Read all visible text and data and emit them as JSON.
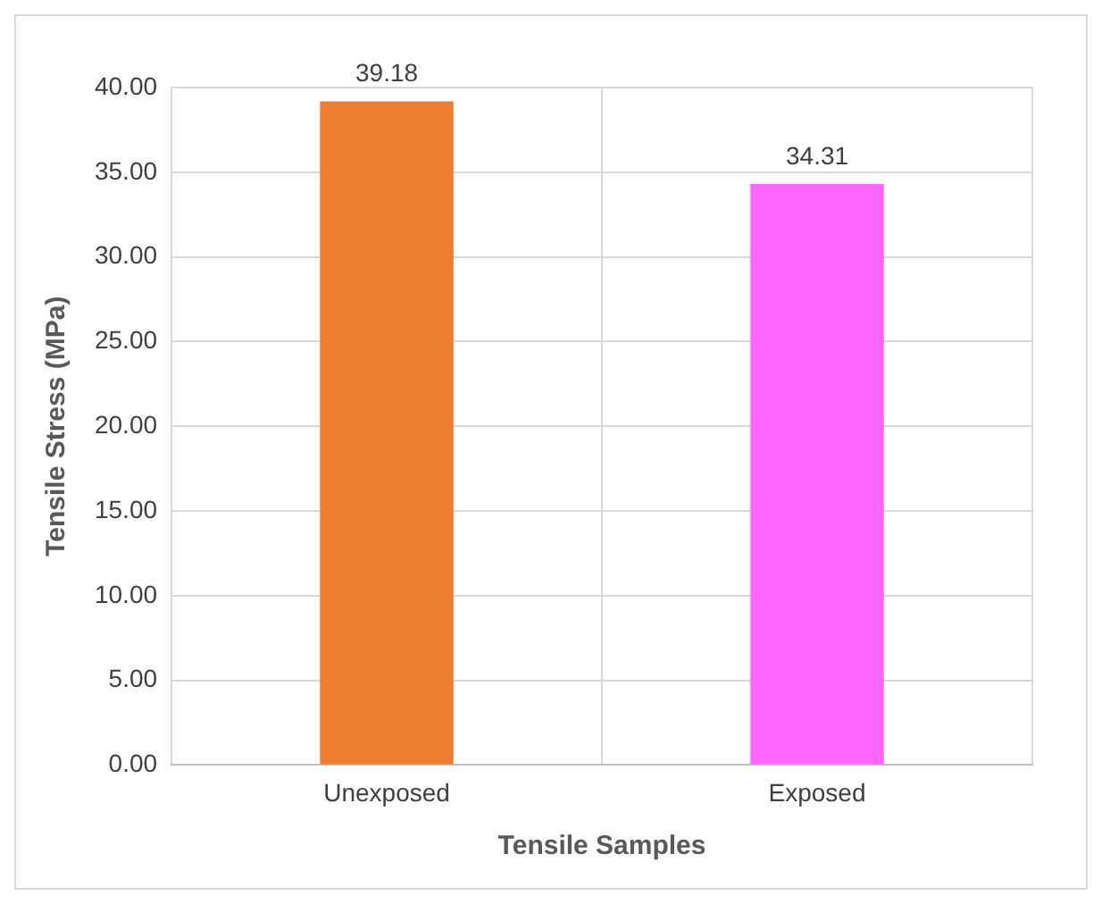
{
  "chart_data": {
    "type": "bar",
    "xlabel": "Tensile Samples",
    "ylabel": "Tensile Stress (MPa)",
    "categories": [
      "Unexposed",
      "Exposed"
    ],
    "values": [
      39.18,
      34.31
    ],
    "colors": [
      "#ed7d31",
      "#ff66ff"
    ],
    "ylim": [
      0,
      40
    ],
    "yticks": [
      {
        "value": 0,
        "label": "0.00"
      },
      {
        "value": 5,
        "label": "5.00"
      },
      {
        "value": 10,
        "label": "10.00"
      },
      {
        "value": 15,
        "label": "15.00"
      },
      {
        "value": 20,
        "label": "20.00"
      },
      {
        "value": 25,
        "label": "25.00"
      },
      {
        "value": 30,
        "label": "30.00"
      },
      {
        "value": 35,
        "label": "35.00"
      },
      {
        "value": 40,
        "label": "40.00"
      }
    ],
    "grid": true,
    "data_labels": true,
    "legend": false
  }
}
